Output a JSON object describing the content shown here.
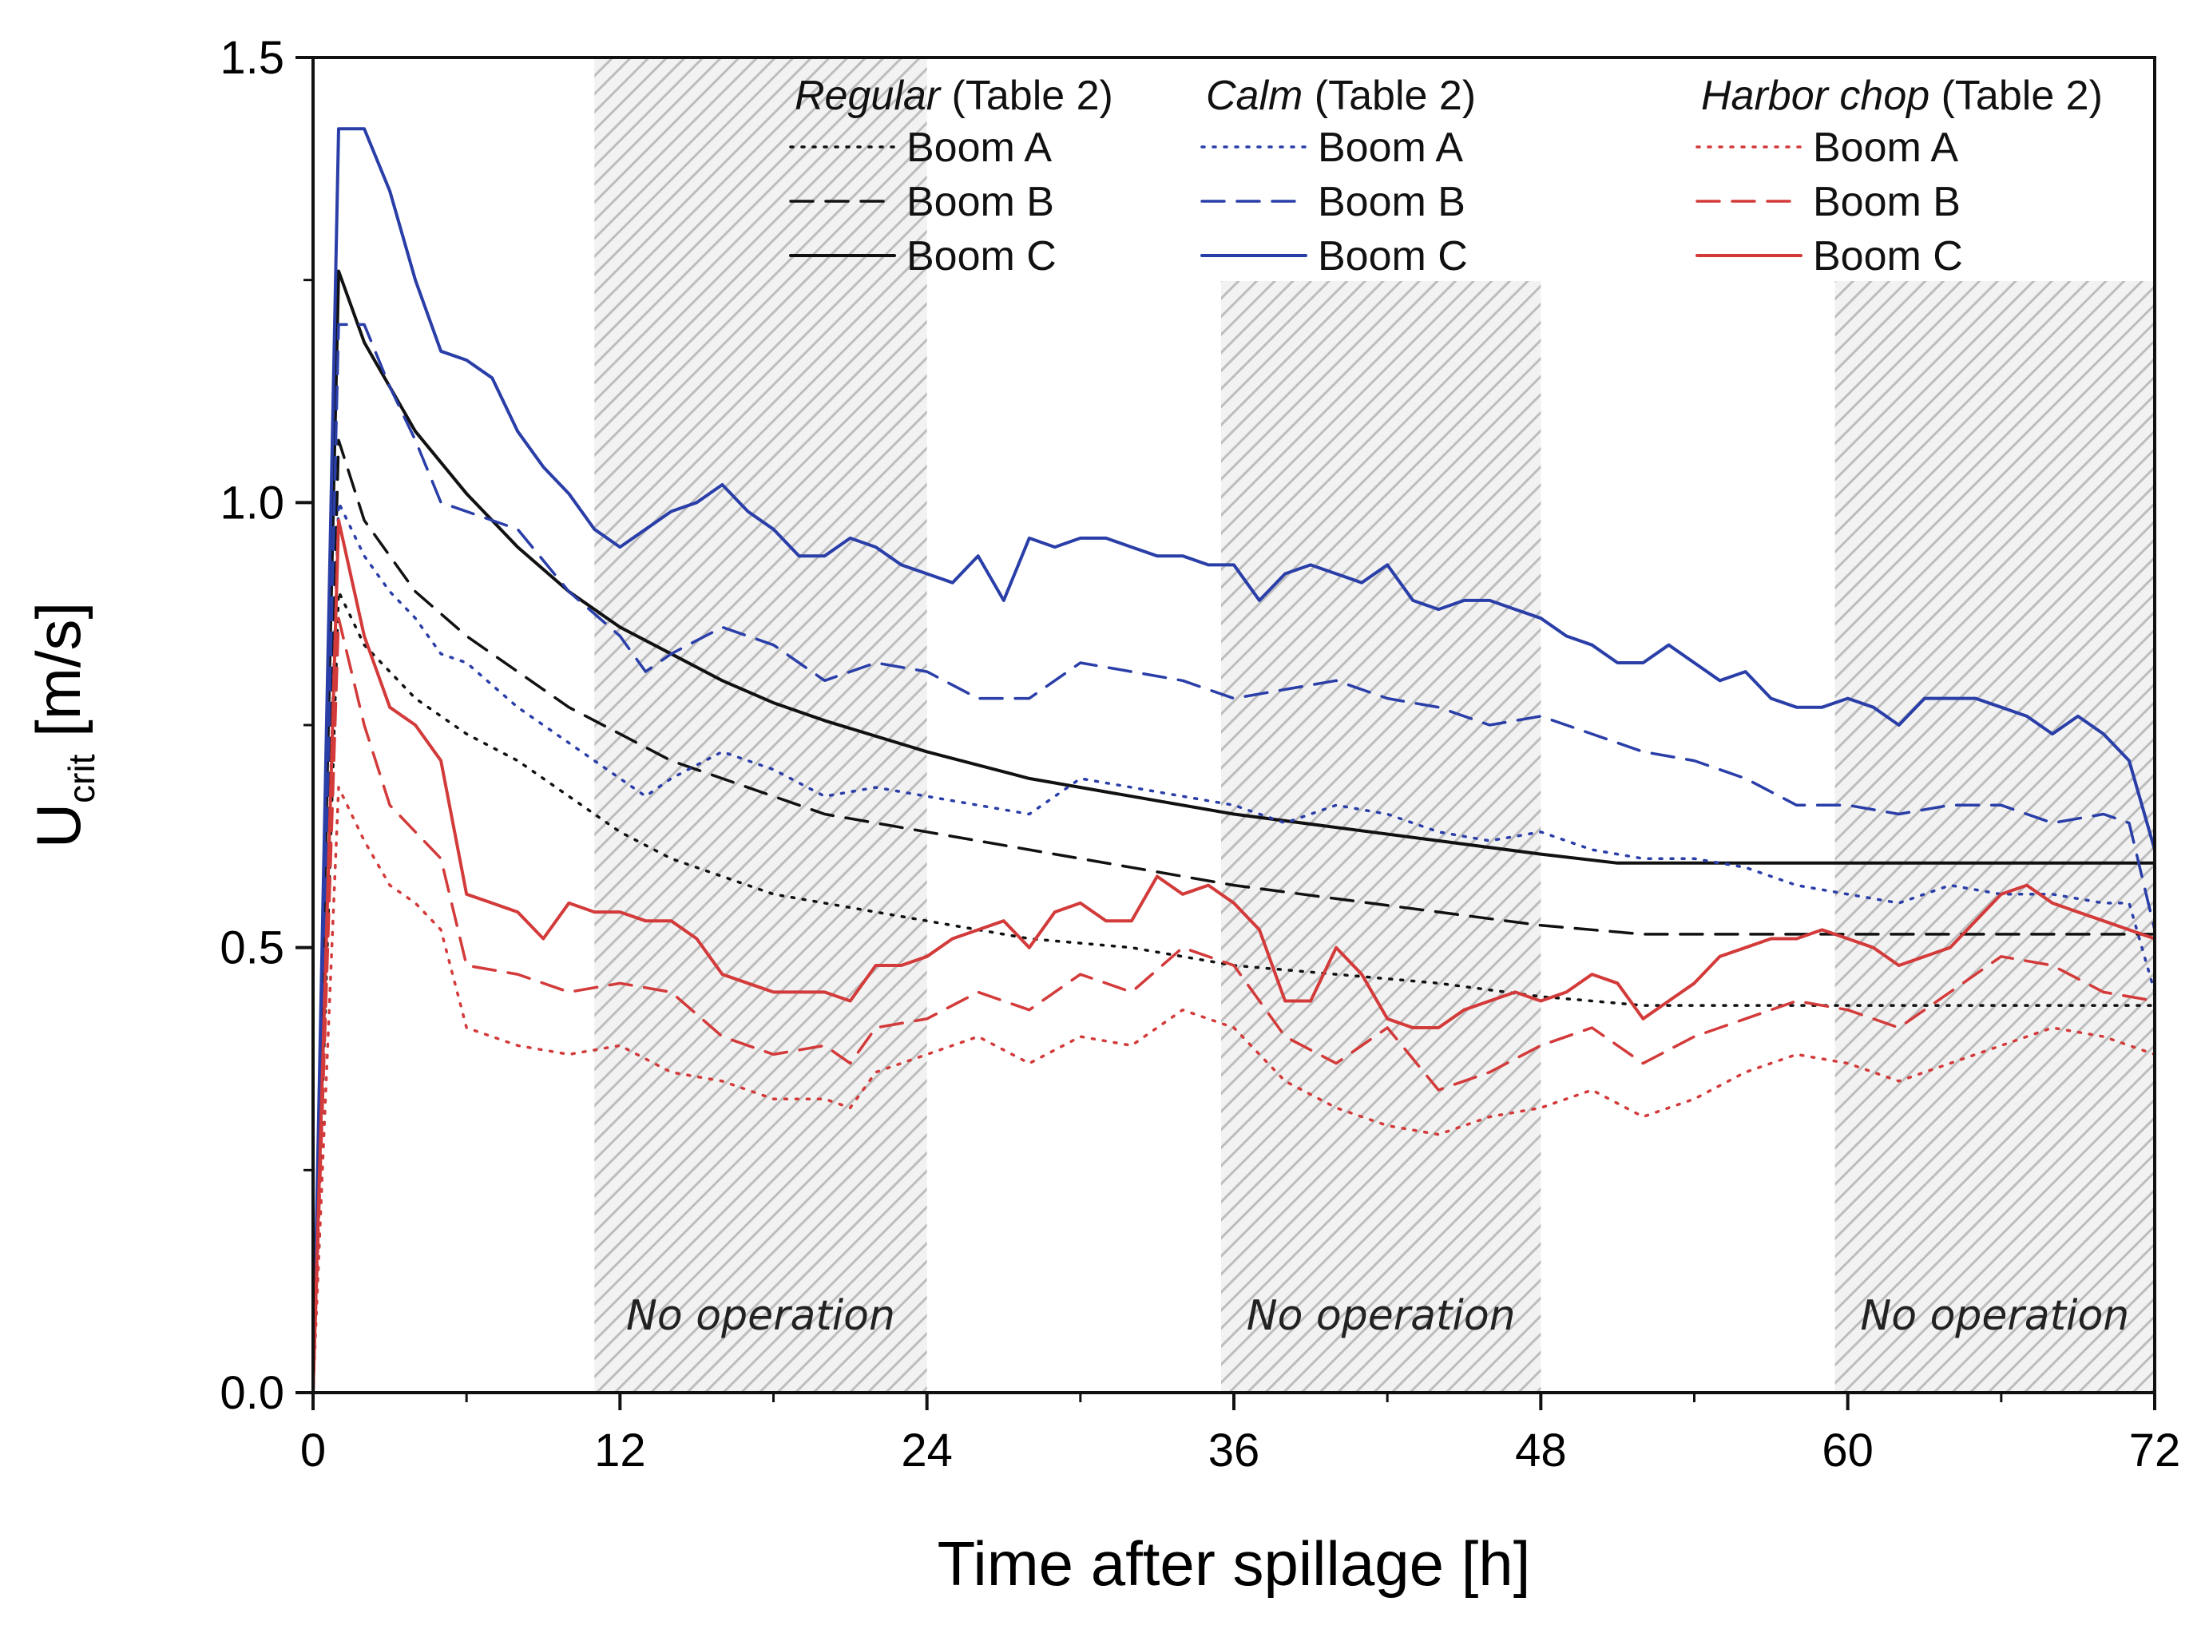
{
  "chart_data": {
    "type": "line",
    "xlabel": "Time after spillage [h]",
    "ylabel_main": "U",
    "ylabel_sub": "crit",
    "ylabel_unit": " [m/s]",
    "xlim": [
      0,
      72
    ],
    "ylim": [
      0,
      1.5
    ],
    "x_ticks": [
      0,
      12,
      24,
      36,
      48,
      60,
      72
    ],
    "x_tick_labels": [
      "0",
      "12",
      "24",
      "36",
      "48",
      "60",
      "72"
    ],
    "y_ticks": [
      0,
      0.5,
      1.0,
      1.5
    ],
    "y_tick_labels": [
      "0.0",
      "0.5",
      "1.0",
      "1.5"
    ],
    "grid": false,
    "legend_position": "top",
    "bands": [
      {
        "x0": 11,
        "x1": 24,
        "label": "No operation"
      },
      {
        "x0": 35.5,
        "x1": 48,
        "label": "No operation"
      },
      {
        "x0": 59.5,
        "x1": 72,
        "label": "No operation"
      }
    ],
    "legend_groups": [
      {
        "title": "Regular",
        "suffix": " (Table 2)",
        "color": "#111111"
      },
      {
        "title": "Calm",
        "suffix": " (Table 2)",
        "color": "#2a3ea8"
      },
      {
        "title": "Harbor chop",
        "suffix": " (Table 2)",
        "color": "#d33a3a"
      }
    ],
    "legend_items": [
      "Boom A",
      "Boom B",
      "Boom C"
    ],
    "series": [
      {
        "group": 0,
        "item": "Boom A",
        "style": "dotted",
        "color": "#111111",
        "x": [
          0,
          1,
          2,
          4,
          6,
          8,
          10,
          12,
          14,
          16,
          18,
          20,
          22,
          24,
          28,
          32,
          36,
          40,
          44,
          48,
          50,
          52,
          56,
          60,
          64,
          68,
          72
        ],
        "y": [
          0,
          0.9,
          0.84,
          0.78,
          0.74,
          0.71,
          0.67,
          0.63,
          0.6,
          0.58,
          0.56,
          0.55,
          0.54,
          0.53,
          0.51,
          0.5,
          0.48,
          0.47,
          0.46,
          0.445,
          0.44,
          0.435,
          0.435,
          0.435,
          0.435,
          0.435,
          0.435
        ]
      },
      {
        "group": 0,
        "item": "Boom B",
        "style": "dashed",
        "color": "#111111",
        "x": [
          0,
          1,
          2,
          4,
          6,
          8,
          10,
          12,
          14,
          16,
          18,
          20,
          24,
          28,
          32,
          36,
          40,
          44,
          48,
          52,
          56,
          60,
          64,
          68,
          72
        ],
        "y": [
          0,
          1.07,
          0.98,
          0.9,
          0.85,
          0.81,
          0.77,
          0.74,
          0.71,
          0.69,
          0.67,
          0.65,
          0.63,
          0.61,
          0.59,
          0.57,
          0.555,
          0.54,
          0.525,
          0.515,
          0.515,
          0.515,
          0.515,
          0.515,
          0.515
        ]
      },
      {
        "group": 0,
        "item": "Boom C",
        "style": "solid",
        "color": "#111111",
        "x": [
          0,
          1,
          2,
          4,
          6,
          8,
          10,
          12,
          14,
          16,
          18,
          20,
          24,
          28,
          32,
          36,
          40,
          44,
          48,
          51,
          56,
          60,
          64,
          68,
          72
        ],
        "y": [
          0,
          1.26,
          1.18,
          1.08,
          1.01,
          0.95,
          0.9,
          0.86,
          0.83,
          0.8,
          0.775,
          0.755,
          0.72,
          0.69,
          0.67,
          0.65,
          0.635,
          0.62,
          0.605,
          0.595,
          0.595,
          0.595,
          0.595,
          0.595,
          0.595
        ]
      },
      {
        "group": 1,
        "item": "Boom A",
        "style": "dotted",
        "color": "#2a3ea8",
        "x": [
          0,
          1,
          2,
          3,
          4,
          5,
          6,
          8,
          10,
          12,
          13,
          14,
          16,
          18,
          20,
          22,
          24,
          26,
          28,
          30,
          32,
          34,
          36,
          38,
          40,
          42,
          44,
          46,
          48,
          50,
          52,
          54,
          56,
          58,
          60,
          62,
          64,
          66,
          68,
          70,
          71,
          72
        ],
        "y": [
          0,
          1.0,
          0.94,
          0.9,
          0.87,
          0.83,
          0.82,
          0.77,
          0.73,
          0.69,
          0.67,
          0.69,
          0.72,
          0.7,
          0.67,
          0.68,
          0.67,
          0.66,
          0.65,
          0.69,
          0.68,
          0.67,
          0.66,
          0.64,
          0.66,
          0.65,
          0.63,
          0.62,
          0.63,
          0.61,
          0.6,
          0.6,
          0.59,
          0.57,
          0.56,
          0.55,
          0.57,
          0.56,
          0.56,
          0.55,
          0.55,
          0.45
        ]
      },
      {
        "group": 1,
        "item": "Boom B",
        "style": "dashed",
        "color": "#2a3ea8",
        "x": [
          0,
          1,
          2,
          3,
          4,
          5,
          6,
          8,
          10,
          12,
          13,
          14,
          16,
          18,
          20,
          22,
          24,
          26,
          28,
          30,
          32,
          34,
          36,
          38,
          40,
          42,
          44,
          46,
          48,
          50,
          52,
          54,
          56,
          58,
          60,
          62,
          64,
          66,
          68,
          70,
          71,
          72
        ],
        "y": [
          0,
          1.2,
          1.2,
          1.13,
          1.07,
          1.0,
          0.99,
          0.97,
          0.9,
          0.85,
          0.81,
          0.83,
          0.86,
          0.84,
          0.8,
          0.82,
          0.81,
          0.78,
          0.78,
          0.82,
          0.81,
          0.8,
          0.78,
          0.79,
          0.8,
          0.78,
          0.77,
          0.75,
          0.76,
          0.74,
          0.72,
          0.71,
          0.69,
          0.66,
          0.66,
          0.65,
          0.66,
          0.66,
          0.64,
          0.65,
          0.64,
          0.52
        ]
      },
      {
        "group": 1,
        "item": "Boom C",
        "style": "solid",
        "color": "#2a3ea8",
        "x": [
          0,
          1,
          2,
          3,
          4,
          5,
          6,
          7,
          8,
          9,
          10,
          11,
          12,
          13,
          14,
          15,
          16,
          17,
          18,
          19,
          20,
          21,
          22,
          23,
          24,
          25,
          26,
          27,
          28,
          29,
          30,
          31,
          32,
          33,
          34,
          35,
          36,
          37,
          38,
          39,
          40,
          41,
          42,
          43,
          44,
          45,
          46,
          47,
          48,
          49,
          50,
          51,
          52,
          53,
          54,
          55,
          56,
          57,
          58,
          59,
          60,
          61,
          62,
          63,
          64,
          65,
          66,
          67,
          68,
          69,
          70,
          71,
          72
        ],
        "y": [
          0,
          1.42,
          1.42,
          1.35,
          1.25,
          1.17,
          1.16,
          1.14,
          1.08,
          1.04,
          1.01,
          0.97,
          0.95,
          0.97,
          0.99,
          1.0,
          1.02,
          0.99,
          0.97,
          0.94,
          0.94,
          0.96,
          0.95,
          0.93,
          0.92,
          0.91,
          0.94,
          0.89,
          0.96,
          0.95,
          0.96,
          0.96,
          0.95,
          0.94,
          0.94,
          0.93,
          0.93,
          0.89,
          0.92,
          0.93,
          0.92,
          0.91,
          0.93,
          0.89,
          0.88,
          0.89,
          0.89,
          0.88,
          0.87,
          0.85,
          0.84,
          0.82,
          0.82,
          0.84,
          0.82,
          0.8,
          0.81,
          0.78,
          0.77,
          0.77,
          0.78,
          0.77,
          0.75,
          0.78,
          0.78,
          0.78,
          0.77,
          0.76,
          0.74,
          0.76,
          0.74,
          0.71,
          0.61
        ]
      },
      {
        "group": 2,
        "item": "Boom A",
        "style": "dotted",
        "color": "#d33a3a",
        "x": [
          0,
          1,
          2,
          3,
          4,
          5,
          6,
          8,
          10,
          12,
          14,
          16,
          18,
          20,
          21,
          22,
          24,
          26,
          28,
          30,
          32,
          34,
          36,
          38,
          40,
          42,
          44,
          46,
          48,
          50,
          52,
          54,
          56,
          58,
          60,
          62,
          64,
          66,
          68,
          70,
          72
        ],
        "y": [
          0,
          0.68,
          0.62,
          0.57,
          0.55,
          0.52,
          0.41,
          0.39,
          0.38,
          0.39,
          0.36,
          0.35,
          0.33,
          0.33,
          0.32,
          0.36,
          0.38,
          0.4,
          0.37,
          0.4,
          0.39,
          0.43,
          0.41,
          0.35,
          0.32,
          0.3,
          0.29,
          0.31,
          0.32,
          0.34,
          0.31,
          0.33,
          0.36,
          0.38,
          0.37,
          0.35,
          0.37,
          0.39,
          0.41,
          0.4,
          0.38
        ]
      },
      {
        "group": 2,
        "item": "Boom B",
        "style": "dashed",
        "color": "#d33a3a",
        "x": [
          0,
          1,
          2,
          3,
          4,
          5,
          6,
          8,
          10,
          12,
          14,
          16,
          18,
          20,
          21,
          22,
          24,
          26,
          28,
          30,
          32,
          34,
          36,
          38,
          40,
          42,
          44,
          46,
          48,
          50,
          52,
          54,
          56,
          58,
          60,
          62,
          64,
          66,
          68,
          70,
          72
        ],
        "y": [
          0,
          0.87,
          0.75,
          0.66,
          0.63,
          0.6,
          0.48,
          0.47,
          0.45,
          0.46,
          0.45,
          0.4,
          0.38,
          0.39,
          0.37,
          0.41,
          0.42,
          0.45,
          0.43,
          0.47,
          0.45,
          0.5,
          0.48,
          0.4,
          0.37,
          0.41,
          0.34,
          0.36,
          0.39,
          0.41,
          0.37,
          0.4,
          0.42,
          0.44,
          0.43,
          0.41,
          0.45,
          0.49,
          0.48,
          0.45,
          0.44
        ]
      },
      {
        "group": 2,
        "item": "Boom C",
        "style": "solid",
        "color": "#d33a3a",
        "x": [
          0,
          1,
          2,
          3,
          4,
          5,
          6,
          7,
          8,
          9,
          10,
          11,
          12,
          13,
          14,
          15,
          16,
          17,
          18,
          19,
          20,
          21,
          22,
          23,
          24,
          25,
          26,
          27,
          28,
          29,
          30,
          31,
          32,
          33,
          34,
          35,
          36,
          37,
          38,
          39,
          40,
          41,
          42,
          43,
          44,
          45,
          46,
          47,
          48,
          49,
          50,
          51,
          52,
          53,
          54,
          55,
          56,
          57,
          58,
          59,
          60,
          61,
          62,
          63,
          64,
          65,
          66,
          67,
          68,
          69,
          70,
          71,
          72
        ],
        "y": [
          0,
          0.98,
          0.85,
          0.77,
          0.75,
          0.71,
          0.56,
          0.55,
          0.54,
          0.51,
          0.55,
          0.54,
          0.54,
          0.53,
          0.53,
          0.51,
          0.47,
          0.46,
          0.45,
          0.45,
          0.45,
          0.44,
          0.48,
          0.48,
          0.49,
          0.51,
          0.52,
          0.53,
          0.5,
          0.54,
          0.55,
          0.53,
          0.53,
          0.58,
          0.56,
          0.57,
          0.55,
          0.52,
          0.44,
          0.44,
          0.5,
          0.47,
          0.42,
          0.41,
          0.41,
          0.43,
          0.44,
          0.45,
          0.44,
          0.45,
          0.47,
          0.46,
          0.42,
          0.44,
          0.46,
          0.49,
          0.5,
          0.51,
          0.51,
          0.52,
          0.51,
          0.5,
          0.48,
          0.49,
          0.5,
          0.53,
          0.56,
          0.57,
          0.55,
          0.54,
          0.53,
          0.52,
          0.51
        ]
      }
    ]
  }
}
